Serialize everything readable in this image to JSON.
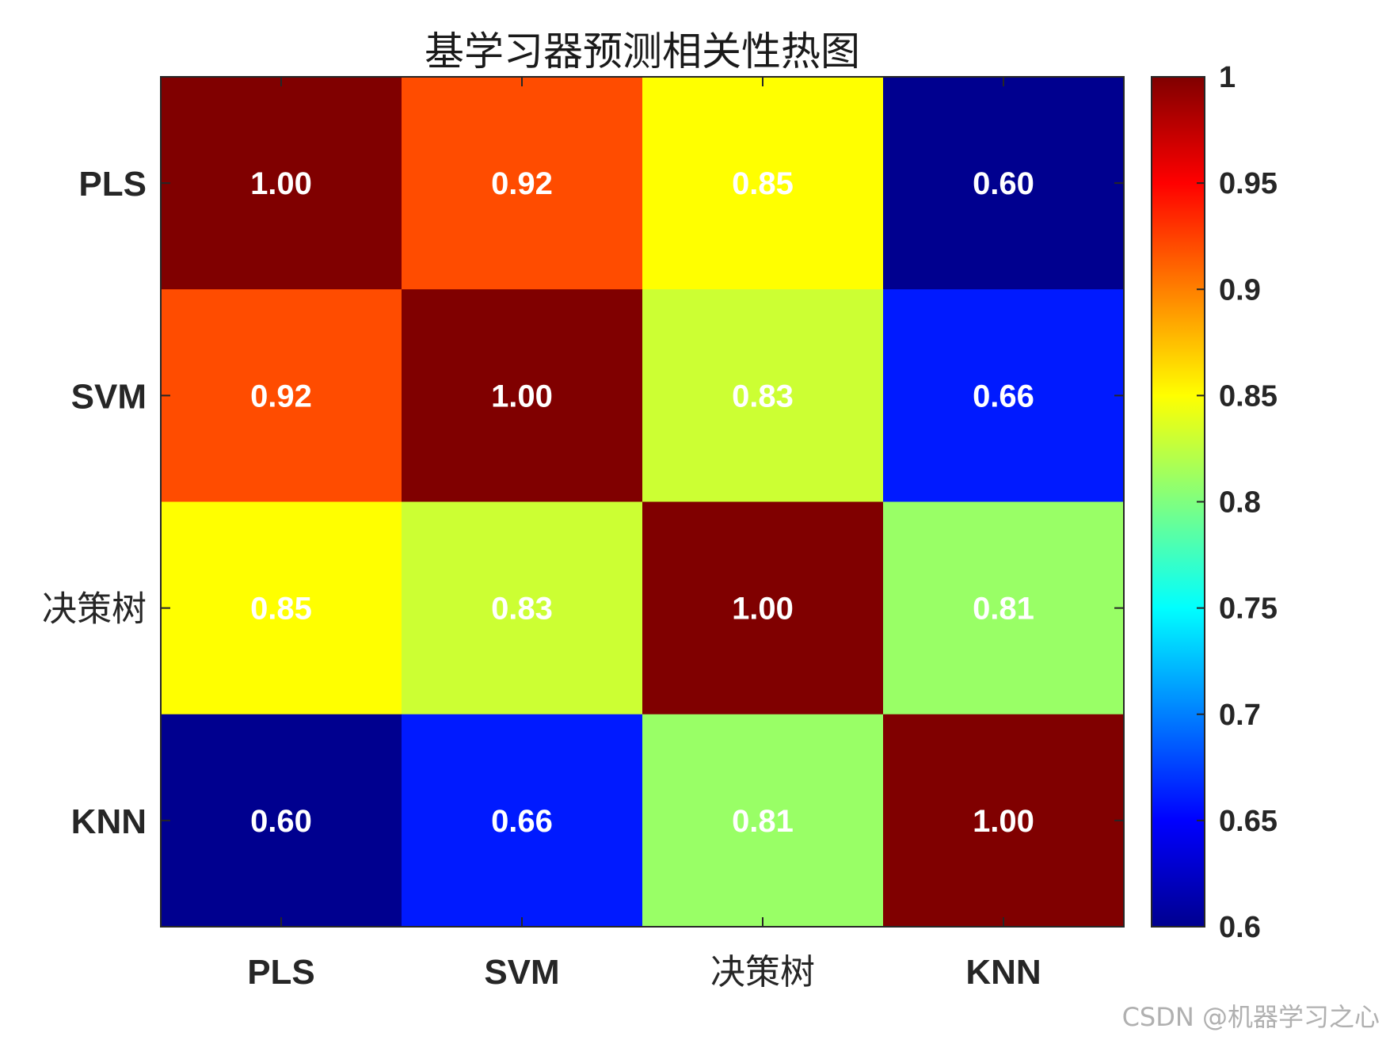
{
  "chart_data": {
    "type": "heatmap",
    "title": "基学习器预测相关性热图",
    "x_categories": [
      "PLS",
      "SVM",
      "决策树",
      "KNN"
    ],
    "y_categories": [
      "PLS",
      "SVM",
      "决策树",
      "KNN"
    ],
    "values": [
      [
        1.0,
        0.92,
        0.85,
        0.6
      ],
      [
        0.92,
        1.0,
        0.83,
        0.66
      ],
      [
        0.85,
        0.83,
        1.0,
        0.81
      ],
      [
        0.6,
        0.66,
        0.81,
        1.0
      ]
    ],
    "value_labels": [
      [
        "1.00",
        "0.92",
        "0.85",
        "0.60"
      ],
      [
        "0.92",
        "1.00",
        "0.83",
        "0.66"
      ],
      [
        "0.85",
        "0.83",
        "1.00",
        "0.81"
      ],
      [
        "0.60",
        "0.66",
        "0.81",
        "1.00"
      ]
    ],
    "colormap": "jet",
    "clim": [
      0.6,
      1.0
    ],
    "colorbar": {
      "ticks": [
        0.6,
        0.65,
        0.7,
        0.75,
        0.8,
        0.85,
        0.9,
        0.95,
        1
      ],
      "tick_labels": [
        "0.6",
        "0.65",
        "0.7",
        "0.75",
        "0.8",
        "0.85",
        "0.9",
        "0.95",
        "1"
      ],
      "placement": "right"
    },
    "label_color": "#ffffff",
    "grid": false
  },
  "watermark": "CSDN @机器学习之心"
}
